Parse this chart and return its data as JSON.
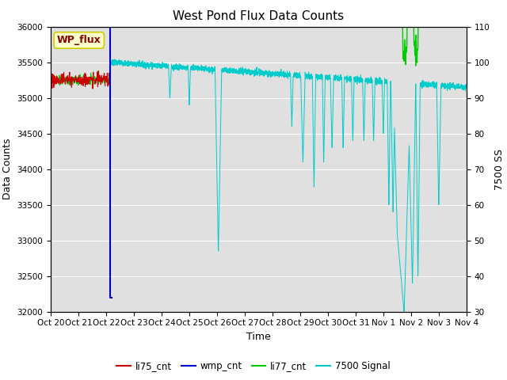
{
  "title": "West Pond Flux Data Counts",
  "xlabel": "Time",
  "ylabel": "Data Counts",
  "ylabel_right": "7500 SS",
  "ylim_left": [
    32000,
    36000
  ],
  "ylim_right": [
    30,
    110
  ],
  "yticks_left": [
    32000,
    32500,
    33000,
    33500,
    34000,
    34500,
    35000,
    35500,
    36000
  ],
  "yticks_right": [
    30,
    40,
    50,
    60,
    70,
    80,
    90,
    100,
    110
  ],
  "xtick_labels": [
    "Oct 20",
    "Oct 21",
    "Oct 22",
    "Oct 23",
    "Oct 24",
    "Oct 25",
    "Oct 26",
    "Oct 27",
    "Oct 28",
    "Oct 29",
    "Oct 30",
    "Oct 31",
    "Nov 1",
    "Nov 2",
    "Nov 3",
    "Nov 4"
  ],
  "annotation_text": "WP_flux",
  "annotation_box_facecolor": "#ffffcc",
  "annotation_box_edgecolor": "#cccc00",
  "annotation_text_color": "#880000",
  "background_color": "#e0e0e0",
  "line_colors": {
    "li75_cnt": "#cc0000",
    "wmp_cnt": "#0000cc",
    "li77_cnt": "#00cc00",
    "signal7500": "#00cccc"
  },
  "legend_labels": [
    "li75_cnt",
    "wmp_cnt",
    "li77_cnt",
    "7500 Signal"
  ],
  "legend_colors": [
    "#cc0000",
    "#0000cc",
    "#00cc00",
    "#00cccc"
  ],
  "grid_color": "#ffffff",
  "title_fontsize": 11,
  "axis_fontsize": 9,
  "tick_fontsize": 7.5
}
